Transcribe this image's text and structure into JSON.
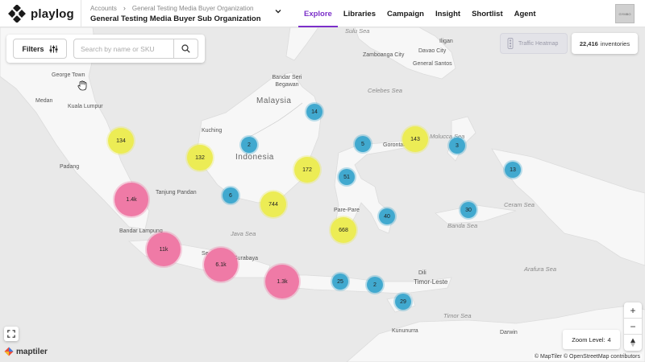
{
  "app": {
    "name": "playlog"
  },
  "breadcrumb": {
    "root": "Accounts",
    "separator": "›",
    "current": "General Testing Media Buyer Organization"
  },
  "org": {
    "title": "General Testing Media Buyer Sub Organization"
  },
  "nav": {
    "items": [
      {
        "label": "Explore",
        "active": true
      },
      {
        "label": "Libraries",
        "active": false
      },
      {
        "label": "Campaign",
        "active": false
      },
      {
        "label": "Insight",
        "active": false
      },
      {
        "label": "Shortlist",
        "active": false
      },
      {
        "label": "Agent",
        "active": false
      }
    ]
  },
  "avatar": {
    "label": "GYMBO"
  },
  "filters": {
    "label": "Filters"
  },
  "search": {
    "placeholder": "Search by name or SKU",
    "value": ""
  },
  "heatmap": {
    "label": "Traffic Heatmap",
    "enabled": false
  },
  "inventory": {
    "count": "22,416",
    "unit": "inventories"
  },
  "zoom": {
    "label": "Zoom Level:",
    "value": "4",
    "plus": "+",
    "minus": "−"
  },
  "attribution": {
    "maptiler": "© MapTiler",
    "osm": "© OpenStreetMap contributors"
  },
  "maptiler_logo": "maptiler",
  "colors": {
    "accent": "#7b2fc9",
    "cluster_small": "#41a9cf",
    "cluster_medium": "#ecec55",
    "cluster_large": "#ef7aa6"
  },
  "map": {
    "places": [
      "Zamboanga City",
      "Davao City",
      "General Santos",
      "Iligan",
      "George Town",
      "Kuala Lumpur",
      "Medan",
      "Bandar Seri Begawan",
      "Malaysia",
      "Kuching",
      "Indonesia",
      "Padang",
      "Tanjung Pandan",
      "Pare-Pare",
      "Gorontalo",
      "Bandar Lampung",
      "Surabaya",
      "Dili",
      "Timor-Leste",
      "Darwin",
      "Kununurra",
      "Se"
    ],
    "seas": [
      "Sulu Sea",
      "Celebes Sea",
      "Molucca Sea",
      "Ceram Sea",
      "Banda Sea",
      "Java Sea",
      "Arafura Sea",
      "Timor Sea"
    ]
  },
  "clusters": [
    {
      "label": "134",
      "tier": "medium"
    },
    {
      "label": "132",
      "tier": "medium"
    },
    {
      "label": "2",
      "tier": "small"
    },
    {
      "label": "14",
      "tier": "small"
    },
    {
      "label": "5",
      "tier": "small"
    },
    {
      "label": "143",
      "tier": "medium"
    },
    {
      "label": "3",
      "tier": "small"
    },
    {
      "label": "13",
      "tier": "small"
    },
    {
      "label": "172",
      "tier": "medium"
    },
    {
      "label": "51",
      "tier": "small"
    },
    {
      "label": "1.4k",
      "tier": "large"
    },
    {
      "label": "6",
      "tier": "small"
    },
    {
      "label": "744",
      "tier": "medium"
    },
    {
      "label": "40",
      "tier": "small"
    },
    {
      "label": "30",
      "tier": "small"
    },
    {
      "label": "668",
      "tier": "medium"
    },
    {
      "label": "11k",
      "tier": "large"
    },
    {
      "label": "6.1k",
      "tier": "large"
    },
    {
      "label": "1.3k",
      "tier": "large"
    },
    {
      "label": "25",
      "tier": "small"
    },
    {
      "label": "2",
      "tier": "small"
    },
    {
      "label": "29",
      "tier": "small"
    }
  ]
}
